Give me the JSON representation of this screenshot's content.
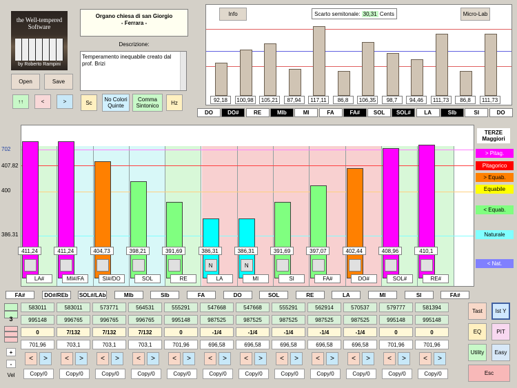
{
  "logo": {
    "line1": "the Well-tempered",
    "line2": "Software",
    "author": "by Roberto Rampini"
  },
  "organ": {
    "title": "Organo chiesa di san Giorgio",
    "subtitle": "- Ferrara -"
  },
  "description": {
    "label": "Descrizione:",
    "text": "Temperamento inequabile creato dal prof. Brizi"
  },
  "buttons": {
    "open": "Open",
    "save": "Save",
    "info": "Info",
    "microlab": "Micro-Lab",
    "prev": "<",
    "next": ">",
    "play": "↑↑",
    "sc": "Sc",
    "nocolori": "No Colori Quinte",
    "comma": "Comma Sintonico",
    "hz": "Hz",
    "tast": "Tast",
    "isty": "Ist Y",
    "eq": "EQ",
    "pit": "PIT",
    "utility": "Utility",
    "easy": "Easy",
    "esc": "Esc",
    "plus": "+",
    "minus": "-",
    "vel": "Vel"
  },
  "semitone": {
    "label": "Scarto semitonale:",
    "value": "30,31",
    "unit": "Cents"
  },
  "top_chart": {
    "values": [
      92.18,
      100.98,
      105.21,
      87.94,
      117.11,
      86.8,
      106.35,
      98.7,
      94.46,
      111.73,
      86.8,
      111.73
    ],
    "labels": [
      "92,18",
      "100,98",
      "105,21",
      "87,94",
      "117,11",
      "86,8",
      "106,35",
      "98,7",
      "94,46",
      "111,73",
      "86,8",
      "111,73"
    ],
    "ymin": 70,
    "ymax": 122,
    "ref_red": [
      115,
      90
    ],
    "ref_blue": 100
  },
  "notes": [
    {
      "n": "DO",
      "d": false
    },
    {
      "n": "DO#",
      "d": true
    },
    {
      "n": "RE",
      "d": false
    },
    {
      "n": "MIb",
      "d": true
    },
    {
      "n": "MI",
      "d": false
    },
    {
      "n": "FA",
      "d": false
    },
    {
      "n": "FA#",
      "d": true
    },
    {
      "n": "SOL",
      "d": false
    },
    {
      "n": "SOL#",
      "d": true
    },
    {
      "n": "LA",
      "d": false
    },
    {
      "n": "SIb",
      "d": true
    },
    {
      "n": "SI",
      "d": false
    },
    {
      "n": "DO",
      "d": false
    }
  ],
  "thirds": {
    "title": "TERZE Maggiori",
    "axis": [
      "702",
      "407.82",
      "400",
      "386.31"
    ],
    "values": [
      411.24,
      411.24,
      404.73,
      398.21,
      391.69,
      386.31,
      386.31,
      391.69,
      397.07,
      402.44,
      408.96,
      410.1
    ],
    "labels": [
      "411,24",
      "411,24",
      "404,73",
      "398,21",
      "391,69",
      "386,31",
      "386,31",
      "391,69",
      "397,07",
      "402,44",
      "408,96",
      "410,1"
    ],
    "bar_colors": [
      "#ff00ff",
      "#ff00ff",
      "#ff8000",
      "#80ff80",
      "#80ff80",
      "#00ffff",
      "#00ffff",
      "#80ff80",
      "#80ff80",
      "#ff8000",
      "#ff00ff",
      "#ff00ff"
    ],
    "bg_colors": [
      "#d8f8d8",
      "#d8f8f8",
      "#d8f8f8",
      "#d8f8f8",
      "#d8f8d8",
      "#f8d0d0",
      "#f8d0d0",
      "#f8d0d0",
      "#f8d0d0",
      "#f8d0d0",
      "#d8f8d8",
      "#d8f8d8"
    ],
    "check": [
      "",
      "",
      "",
      "",
      "",
      "N",
      "N",
      "",
      "",
      "",
      "",
      ""
    ],
    "names": [
      "LA#",
      "MI#/FA",
      "SI#/DO",
      "SOL",
      "RE",
      "LA",
      "MI",
      "SI",
      "FA#",
      "DO#",
      "SOL#",
      "RE#"
    ]
  },
  "legend": [
    {
      "t": "> Pitag.",
      "bg": "#ff00ff",
      "c": "#fff"
    },
    {
      "t": "Pitagorico",
      "bg": "#ff0000",
      "c": "#fff"
    },
    {
      "t": "> Equab.",
      "bg": "#ff8000",
      "c": "#000"
    },
    {
      "t": "Equabile",
      "bg": "#ffff00",
      "c": "#000"
    },
    {
      "t": "< Equab.",
      "bg": "#80ff80",
      "c": "#000"
    },
    {
      "t": "Naturale",
      "bg": "#80ffff",
      "c": "#000"
    },
    {
      "t": "< Nat.",
      "bg": "#8080ff",
      "c": "#fff"
    }
  ],
  "bottom_notes": [
    "FA#",
    "DO#/REb",
    "SOL#/LAb",
    "MIb",
    "SIb",
    "FA",
    "DO",
    "SOL",
    "RE",
    "LA",
    "MI",
    "SI",
    "FA#"
  ],
  "table": {
    "counter": "3",
    "row1": [
      "583011",
      "583011",
      "573771",
      "564531",
      "555291",
      "547668",
      "547668",
      "555291",
      "562914",
      "570537",
      "579777",
      "581394"
    ],
    "row2": [
      "995148",
      "996765",
      "996765",
      "996765",
      "995148",
      "987525",
      "987525",
      "987525",
      "987525",
      "987525",
      "995148",
      "995148"
    ],
    "row3": [
      "0",
      "7/132",
      "7/132",
      "7/132",
      "0",
      "-1/4",
      "-1/4",
      "-1/4",
      "-1/4",
      "-1/4",
      "0",
      "0"
    ],
    "row4": [
      "701,96",
      "703,1",
      "703,1",
      "703,1",
      "701,96",
      "696,58",
      "696,58",
      "696,58",
      "696,58",
      "696,58",
      "701,96",
      "701,96"
    ],
    "copy": "Copy/0"
  }
}
